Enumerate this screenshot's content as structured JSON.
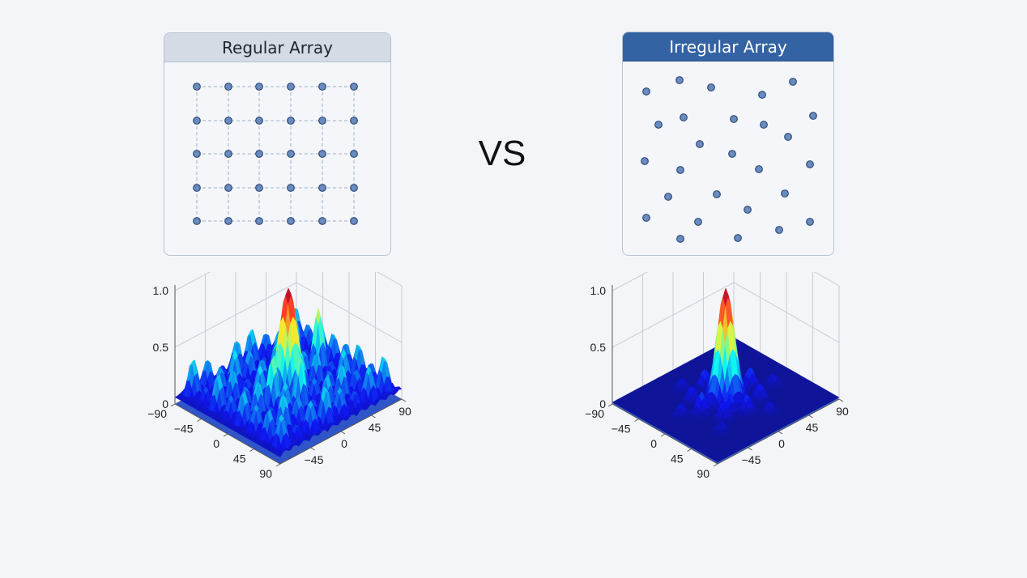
{
  "left": {
    "title": "Regular Array"
  },
  "right": {
    "title": "Irregular Array"
  },
  "vs": "VS",
  "colors": {
    "dot_fill": "#6a8bbf",
    "dot_stroke": "#2f4a78",
    "header_blue": "#3463a4"
  },
  "chart_data": [
    {
      "type": "surface",
      "name": "regular-array-pattern",
      "zticks": [
        "1.0",
        "0.5",
        "0"
      ],
      "xticks": [
        "−90",
        "−45",
        "0",
        "45",
        "90"
      ],
      "yticks": [
        "−45",
        "0",
        "45",
        "90"
      ]
    },
    {
      "type": "surface",
      "name": "irregular-array-pattern",
      "zticks": [
        "1.0",
        "0.5",
        "0"
      ],
      "xticks": [
        "−90",
        "−45",
        "0",
        "45",
        "90"
      ],
      "yticks": [
        "−45",
        "0",
        "45",
        "90"
      ]
    }
  ]
}
